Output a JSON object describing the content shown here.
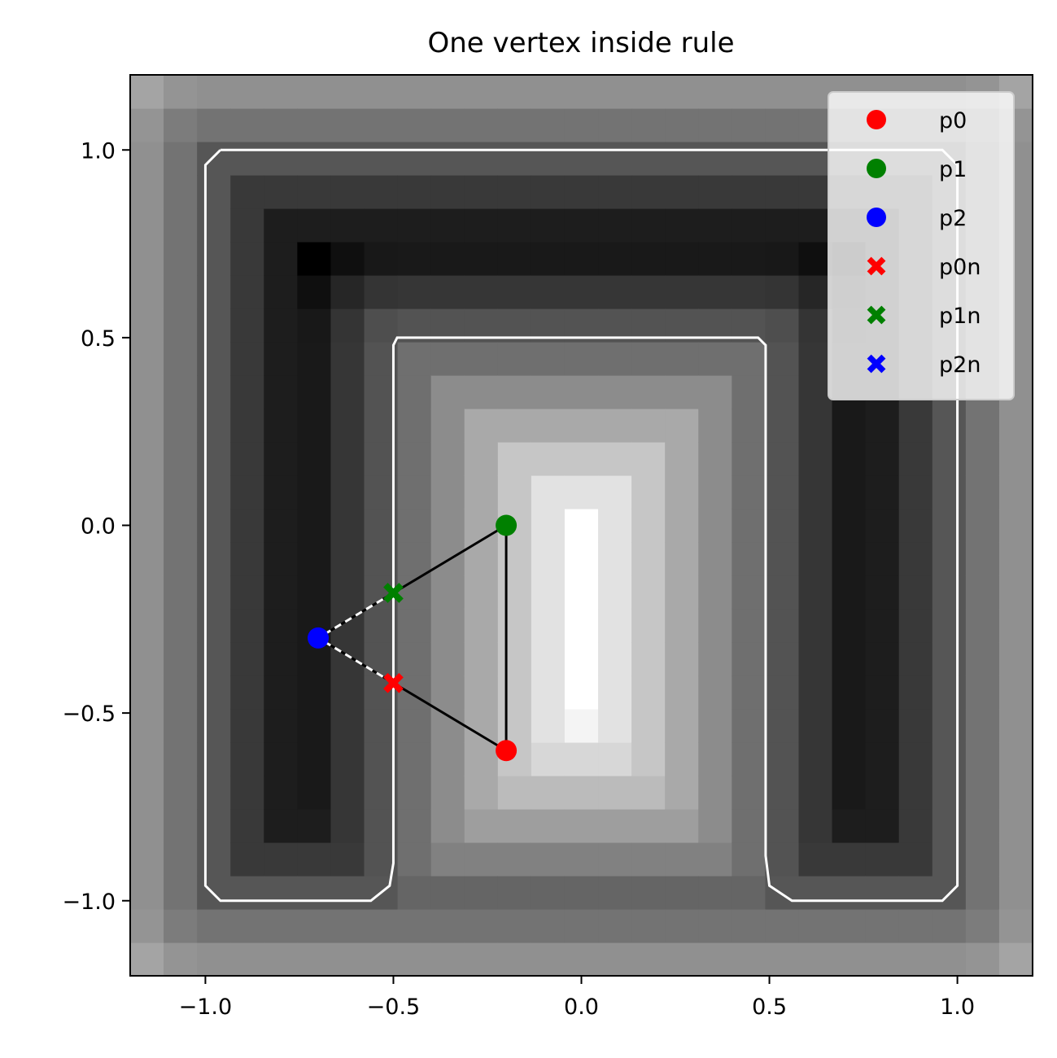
{
  "chart_data": {
    "type": "scatter",
    "title": "One vertex inside rule",
    "xlabel": "",
    "ylabel": "",
    "xlim": [
      -1.2,
      1.2
    ],
    "ylim": [
      -1.2,
      1.2
    ],
    "xticks": [
      -1.0,
      -0.5,
      0.0,
      0.5,
      1.0
    ],
    "xtick_labels": [
      "−1.0",
      "−0.5",
      "0.0",
      "0.5",
      "1.0"
    ],
    "yticks": [
      1.0,
      0.5,
      0.0,
      -0.5,
      -1.0
    ],
    "ytick_labels": [
      "1.0",
      "0.5",
      "0.0",
      "−0.5",
      "−1.0"
    ],
    "grid": false,
    "legend_position": "top-right",
    "background_field": {
      "description": "grayscale signed-distance style field on 27x27 grid",
      "colormap": "gray",
      "grid_n": 27
    },
    "contour": {
      "color": "#ffffff",
      "points": [
        [
          -0.96,
          1.0
        ],
        [
          0.96,
          1.0
        ],
        [
          1.0,
          0.96
        ],
        [
          1.0,
          -0.96
        ],
        [
          0.96,
          -1.0
        ],
        [
          0.56,
          -1.0
        ],
        [
          0.5,
          -0.96
        ],
        [
          0.49,
          -0.88
        ],
        [
          0.49,
          0.48
        ],
        [
          0.47,
          0.5
        ],
        [
          -0.49,
          0.5
        ],
        [
          -0.5,
          0.48
        ],
        [
          -0.5,
          -0.9
        ],
        [
          -0.51,
          -0.96
        ],
        [
          -0.56,
          -1.0
        ],
        [
          -0.96,
          -1.0
        ],
        [
          -1.0,
          -0.96
        ],
        [
          -1.0,
          0.96
        ],
        [
          -0.96,
          1.0
        ]
      ]
    },
    "triangle_edges": [
      {
        "from": [
          -0.2,
          0.0
        ],
        "to": [
          -0.2,
          -0.6
        ],
        "style": "solid"
      },
      {
        "from": [
          -0.2,
          0.0
        ],
        "to": [
          -0.5,
          -0.18
        ],
        "style": "solid"
      },
      {
        "from": [
          -0.2,
          -0.6
        ],
        "to": [
          -0.5,
          -0.42
        ],
        "style": "solid"
      },
      {
        "from": [
          -0.5,
          -0.18
        ],
        "to": [
          -0.7,
          -0.3
        ],
        "style": "dashed"
      },
      {
        "from": [
          -0.5,
          -0.42
        ],
        "to": [
          -0.7,
          -0.3
        ],
        "style": "dashed"
      }
    ],
    "series": [
      {
        "name": "p0",
        "marker": "circle",
        "color": "#ff0000",
        "x": [
          -0.2
        ],
        "y": [
          -0.6
        ]
      },
      {
        "name": "p1",
        "marker": "circle",
        "color": "#008000",
        "x": [
          -0.2
        ],
        "y": [
          0.0
        ]
      },
      {
        "name": "p2",
        "marker": "circle",
        "color": "#0000ff",
        "x": [
          -0.7
        ],
        "y": [
          -0.3
        ]
      },
      {
        "name": "p0n",
        "marker": "x",
        "color": "#ff0000",
        "x": [
          -0.5
        ],
        "y": [
          -0.42
        ]
      },
      {
        "name": "p1n",
        "marker": "x",
        "color": "#008000",
        "x": [
          -0.5
        ],
        "y": [
          -0.18
        ]
      },
      {
        "name": "p2n",
        "marker": "x",
        "color": "#0000ff",
        "x": [],
        "y": []
      }
    ]
  }
}
